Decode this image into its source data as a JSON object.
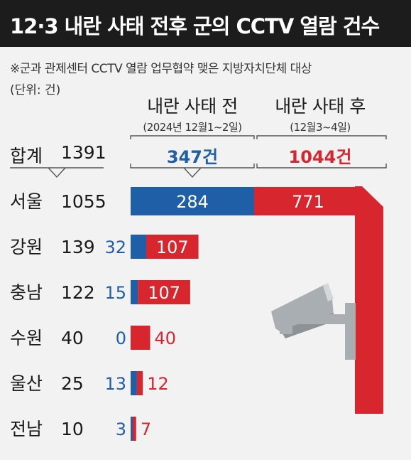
{
  "title": "12·3 내란 사태 전후 군의 CCTV 열람 건수",
  "note": "※군과 관제센터 CCTV 열람 업무협약 맺은 지방자치단체 대상",
  "unit": "(단위: 건)",
  "columns": {
    "before": {
      "label": "내란 사태 전",
      "period": "(2024년 12월1~2일)",
      "total": "347건"
    },
    "after": {
      "label": "내란 사태 후",
      "period": "(12월3~4일)",
      "total": "1044건"
    }
  },
  "summary": {
    "label": "합계",
    "total": "1391"
  },
  "colors": {
    "before": "#1f5fa8",
    "after": "#d7262e",
    "title_bg": "#1c1c1c",
    "background": "#f2f2f2",
    "camera": "#a9aeb3"
  },
  "icons": {
    "illustration": "cctv-camera-icon"
  },
  "chart_data": {
    "type": "bar",
    "stacked": true,
    "orientation": "horizontal",
    "categories": [
      "서울",
      "강원",
      "충남",
      "수원",
      "울산",
      "전남"
    ],
    "totals": [
      1055,
      139,
      122,
      40,
      25,
      10
    ],
    "series": [
      {
        "name": "내란 사태 전",
        "values": [
          284,
          32,
          15,
          0,
          13,
          3
        ],
        "color": "#1f5fa8"
      },
      {
        "name": "내란 사태 후",
        "values": [
          771,
          107,
          107,
          40,
          12,
          7
        ],
        "color": "#d7262e"
      }
    ]
  }
}
